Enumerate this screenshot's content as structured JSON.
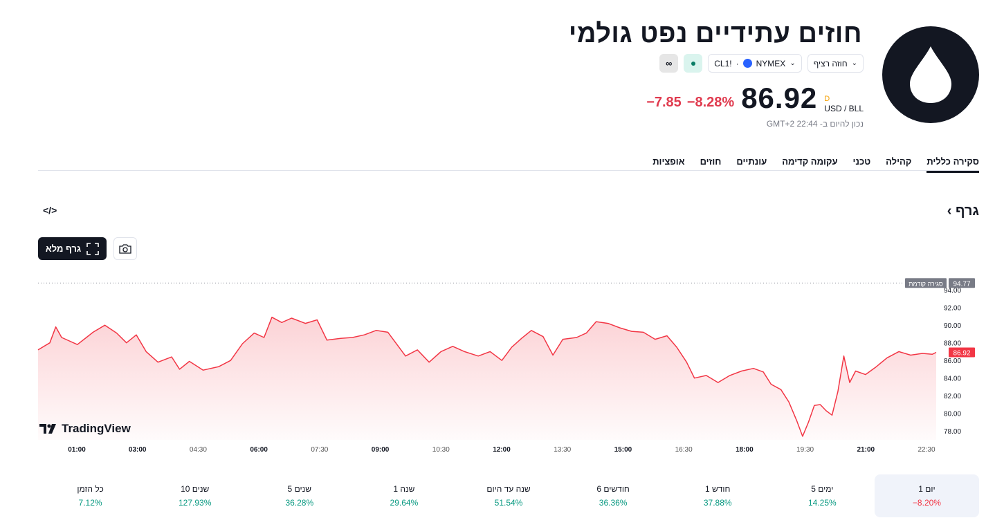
{
  "header": {
    "title": "חוזים עתידיים נפט גולמי",
    "contract_type": "חוזה רציף",
    "symbol": "CL1!",
    "exchange": "NYMEX",
    "price": "86.92",
    "currency_flag": "D",
    "unit": "USD / BLL",
    "change": "−7.85",
    "change_pct": "−8.28%",
    "as_of": "נכון להיום ב- 22:44 GMT+2"
  },
  "tabs": [
    "סקירה כללית",
    "קהילה",
    "טכני",
    "עקומה קדימה",
    "עונתיים",
    "חוזים",
    "אופציות"
  ],
  "section": {
    "title": "גרף",
    "full_chart_label": "גרף מלא"
  },
  "chart_data": {
    "type": "area",
    "x_labels": [
      "01:00",
      "03:00",
      "04:30",
      "06:00",
      "07:30",
      "09:00",
      "10:30",
      "12:00",
      "13:30",
      "15:00",
      "16:30",
      "18:00",
      "19:30",
      "21:00",
      "22:30"
    ],
    "bold_x_labels": [
      "01:00",
      "03:00",
      "06:00",
      "09:00",
      "12:00",
      "15:00",
      "18:00",
      "21:00"
    ],
    "y_ticks": [
      "78.00",
      "80.00",
      "82.00",
      "84.00",
      "86.00",
      "88.00",
      "90.00",
      "92.00",
      "94.00"
    ],
    "ylim": [
      77,
      95.5
    ],
    "prev_close": 94.77,
    "prev_close_label": "סגירה קודמת",
    "last_price": 86.92,
    "line_color": "#f23645",
    "series": [
      {
        "t": 0.0,
        "v": 87.2
      },
      {
        "t": 0.3,
        "v": 88.0
      },
      {
        "t": 0.45,
        "v": 89.8
      },
      {
        "t": 0.6,
        "v": 88.6
      },
      {
        "t": 1.0,
        "v": 87.8
      },
      {
        "t": 1.4,
        "v": 89.2
      },
      {
        "t": 1.7,
        "v": 90.0
      },
      {
        "t": 2.0,
        "v": 89.1
      },
      {
        "t": 2.25,
        "v": 88.0
      },
      {
        "t": 2.5,
        "v": 88.9
      },
      {
        "t": 2.75,
        "v": 87.0
      },
      {
        "t": 3.05,
        "v": 85.8
      },
      {
        "t": 3.4,
        "v": 86.4
      },
      {
        "t": 3.6,
        "v": 85.0
      },
      {
        "t": 3.85,
        "v": 85.9
      },
      {
        "t": 4.2,
        "v": 84.9
      },
      {
        "t": 4.6,
        "v": 85.3
      },
      {
        "t": 4.9,
        "v": 86.0
      },
      {
        "t": 5.2,
        "v": 87.9
      },
      {
        "t": 5.5,
        "v": 89.1
      },
      {
        "t": 5.75,
        "v": 88.6
      },
      {
        "t": 5.95,
        "v": 90.9
      },
      {
        "t": 6.2,
        "v": 90.3
      },
      {
        "t": 6.45,
        "v": 90.8
      },
      {
        "t": 6.8,
        "v": 90.2
      },
      {
        "t": 7.1,
        "v": 90.6
      },
      {
        "t": 7.35,
        "v": 88.3
      },
      {
        "t": 7.7,
        "v": 88.5
      },
      {
        "t": 8.0,
        "v": 88.6
      },
      {
        "t": 8.3,
        "v": 88.9
      },
      {
        "t": 8.6,
        "v": 89.4
      },
      {
        "t": 8.9,
        "v": 89.2
      },
      {
        "t": 9.1,
        "v": 88.0
      },
      {
        "t": 9.35,
        "v": 86.5
      },
      {
        "t": 9.65,
        "v": 87.2
      },
      {
        "t": 9.95,
        "v": 85.8
      },
      {
        "t": 10.25,
        "v": 87.0
      },
      {
        "t": 10.55,
        "v": 87.6
      },
      {
        "t": 10.85,
        "v": 87.0
      },
      {
        "t": 11.2,
        "v": 86.5
      },
      {
        "t": 11.5,
        "v": 87.0
      },
      {
        "t": 11.8,
        "v": 86.0
      },
      {
        "t": 12.05,
        "v": 87.5
      },
      {
        "t": 12.3,
        "v": 88.5
      },
      {
        "t": 12.55,
        "v": 89.4
      },
      {
        "t": 12.85,
        "v": 88.7
      },
      {
        "t": 13.1,
        "v": 86.6
      },
      {
        "t": 13.35,
        "v": 88.4
      },
      {
        "t": 13.7,
        "v": 88.6
      },
      {
        "t": 13.95,
        "v": 89.1
      },
      {
        "t": 14.2,
        "v": 90.4
      },
      {
        "t": 14.5,
        "v": 90.2
      },
      {
        "t": 14.8,
        "v": 89.7
      },
      {
        "t": 15.1,
        "v": 89.3
      },
      {
        "t": 15.4,
        "v": 89.2
      },
      {
        "t": 15.7,
        "v": 88.4
      },
      {
        "t": 16.0,
        "v": 88.8
      },
      {
        "t": 16.25,
        "v": 87.5
      },
      {
        "t": 16.5,
        "v": 85.8
      },
      {
        "t": 16.7,
        "v": 84.0
      },
      {
        "t": 17.0,
        "v": 84.3
      },
      {
        "t": 17.3,
        "v": 83.5
      },
      {
        "t": 17.6,
        "v": 84.3
      },
      {
        "t": 17.9,
        "v": 84.8
      },
      {
        "t": 18.2,
        "v": 85.1
      },
      {
        "t": 18.45,
        "v": 84.7
      },
      {
        "t": 18.65,
        "v": 83.3
      },
      {
        "t": 18.9,
        "v": 82.7
      },
      {
        "t": 19.1,
        "v": 81.3
      },
      {
        "t": 19.3,
        "v": 79.2
      },
      {
        "t": 19.45,
        "v": 77.4
      },
      {
        "t": 19.6,
        "v": 79.0
      },
      {
        "t": 19.75,
        "v": 80.9
      },
      {
        "t": 19.9,
        "v": 81.0
      },
      {
        "t": 20.05,
        "v": 80.3
      },
      {
        "t": 20.2,
        "v": 79.8
      },
      {
        "t": 20.35,
        "v": 82.5
      },
      {
        "t": 20.5,
        "v": 86.5
      },
      {
        "t": 20.65,
        "v": 83.5
      },
      {
        "t": 20.8,
        "v": 84.8
      },
      {
        "t": 21.05,
        "v": 84.4
      },
      {
        "t": 21.3,
        "v": 85.2
      },
      {
        "t": 21.6,
        "v": 86.3
      },
      {
        "t": 21.9,
        "v": 87.0
      },
      {
        "t": 22.2,
        "v": 86.6
      },
      {
        "t": 22.5,
        "v": 86.8
      },
      {
        "t": 22.75,
        "v": 86.7
      },
      {
        "t": 22.85,
        "v": 86.92
      }
    ]
  },
  "performance": [
    {
      "period": "יום 1",
      "value": "−8.20%",
      "sign": "neg"
    },
    {
      "period": "5 ימים",
      "value": "14.25%",
      "sign": "pos"
    },
    {
      "period": "חודש 1",
      "value": "37.88%",
      "sign": "pos"
    },
    {
      "period": "6 חודשים",
      "value": "36.36%",
      "sign": "pos"
    },
    {
      "period": "שנה עד היום",
      "value": "51.54%",
      "sign": "pos"
    },
    {
      "period": "שנה 1",
      "value": "29.64%",
      "sign": "pos"
    },
    {
      "period": "5 שנים",
      "value": "36.28%",
      "sign": "pos"
    },
    {
      "period": "10 שנים",
      "value": "127.93%",
      "sign": "pos"
    },
    {
      "period": "כל הזמן",
      "value": "7.12%",
      "sign": "pos"
    }
  ],
  "branding": {
    "tradingview": "TradingView"
  },
  "icons": [
    "oil-drop-icon",
    "chevron-down-icon",
    "globe-icon",
    "status-dot-icon",
    "infinity-icon",
    "code-icon",
    "fullscreen-icon",
    "camera-icon",
    "tradingview-logo-icon"
  ]
}
